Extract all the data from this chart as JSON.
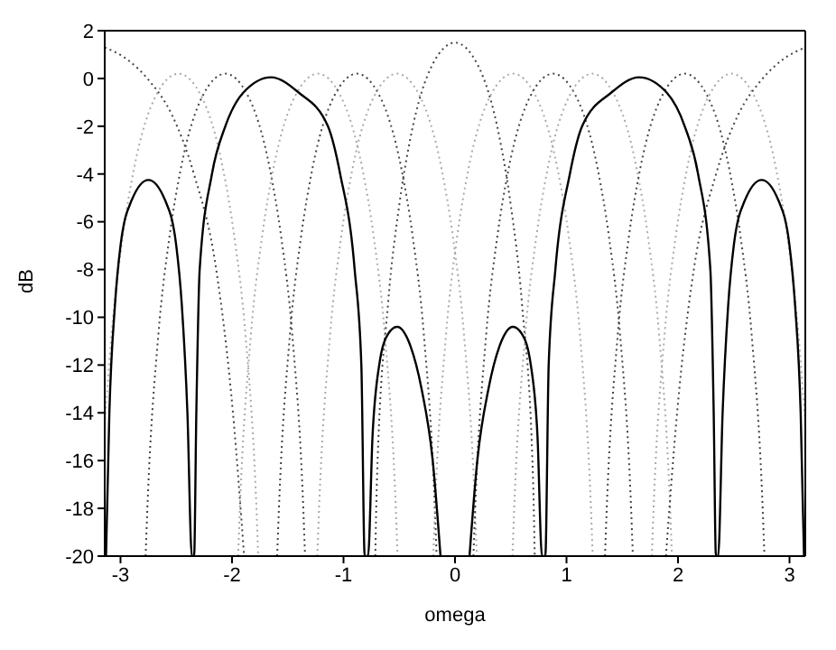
{
  "chart_data": {
    "type": "line",
    "xlabel": "omega",
    "ylabel": "dB",
    "xlim": [
      -3.1416,
      3.1416
    ],
    "xticks": [
      -3,
      -2,
      -1,
      0,
      1,
      2,
      3
    ],
    "ylim": [
      -20,
      2
    ],
    "yticks": [
      -20,
      -18,
      -16,
      -14,
      -12,
      -10,
      -8,
      -6,
      -4,
      -2,
      0,
      2
    ],
    "legend": false,
    "marker": "none",
    "series": [
      {
        "color": "#444444",
        "line_style": "dotted",
        "x": [
          -3.1416,
          -2.9416,
          -2.7416,
          -2.5416,
          -2.3416,
          -2.1416,
          -1.9916,
          -1.8916
        ],
        "values": [
          1.3,
          0.8,
          -0.1,
          -1.5,
          -4,
          -8,
          -14,
          -20
        ]
      },
      {
        "color": "#aaaaaa",
        "line_style": "dotted",
        "x": [
          -3.1416,
          -3.08,
          -2.98,
          -2.88,
          -2.68,
          -2.48,
          -2.28,
          -2.08,
          -1.98,
          -1.88,
          -1.78,
          -1.765
        ],
        "values": [
          -14.5,
          -10.7,
          -6.6,
          -3.8,
          -0.7,
          0.2,
          -0.7,
          -3.8,
          -6.6,
          -10.7,
          -18.1,
          -20
        ]
      },
      {
        "color": "#444444",
        "line_style": "dotted",
        "x": [
          -2.775,
          -2.76,
          -2.66,
          -2.56,
          -2.46,
          -2.26,
          -2.06,
          -1.86,
          -1.66,
          -1.56,
          -1.46,
          -1.36,
          -1.345
        ],
        "values": [
          -20,
          -18.1,
          -10.7,
          -6.6,
          -3.8,
          -0.7,
          0.2,
          -0.7,
          -3.8,
          -6.6,
          -10.7,
          -18.1,
          -20
        ]
      },
      {
        "color": "#aaaaaa",
        "line_style": "dotted",
        "x": [
          -1.945,
          -1.93,
          -1.83,
          -1.73,
          -1.63,
          -1.43,
          -1.23,
          -1.03,
          -0.83,
          -0.73,
          -0.63,
          -0.53,
          -0.515
        ],
        "values": [
          -20,
          -18.1,
          -10.7,
          -6.6,
          -3.8,
          -0.7,
          0.2,
          -0.7,
          -3.8,
          -6.6,
          -10.7,
          -18.1,
          -20
        ]
      },
      {
        "color": "#444444",
        "line_style": "dotted",
        "x": [
          -1.595,
          -1.58,
          -1.48,
          -1.38,
          -1.28,
          -1.08,
          -0.88,
          -0.68,
          -0.48,
          -0.38,
          -0.28,
          -0.18,
          -0.165
        ],
        "values": [
          -20,
          -18.1,
          -10.7,
          -6.6,
          -3.8,
          -0.7,
          0.2,
          -0.7,
          -3.8,
          -6.6,
          -10.7,
          -18.1,
          -20
        ]
      },
      {
        "color": "#aaaaaa",
        "line_style": "dotted",
        "x": [
          -1.235,
          -1.22,
          -1.12,
          -1.02,
          -0.92,
          -0.72,
          -0.52,
          -0.32,
          -0.12,
          -0.02,
          0.08,
          0.18,
          0.195
        ],
        "values": [
          -20,
          -18.1,
          -10.7,
          -6.6,
          -3.8,
          -0.7,
          0.2,
          -0.7,
          -3.8,
          -6.6,
          -10.7,
          -18.1,
          -20
        ]
      },
      {
        "color": "#444444",
        "line_style": "dotted",
        "x": [
          -0.715,
          -0.7,
          -0.6,
          -0.5,
          -0.4,
          -0.2,
          0,
          0.2,
          0.4,
          0.5,
          0.6,
          0.7,
          0.715
        ],
        "values": [
          -20,
          -16.8,
          -9.4,
          -5.3,
          -2.5,
          0.6,
          1.5,
          0.6,
          -2.5,
          -5.3,
          -9.4,
          -16.8,
          -20
        ]
      },
      {
        "color": "#aaaaaa",
        "line_style": "dotted",
        "x": [
          -0.195,
          -0.18,
          -0.08,
          0.02,
          0.12,
          0.32,
          0.52,
          0.72,
          0.92,
          1.02,
          1.12,
          1.22,
          1.235
        ],
        "values": [
          -20,
          -18.1,
          -10.7,
          -6.6,
          -3.8,
          -0.7,
          0.2,
          -0.7,
          -3.8,
          -6.6,
          -10.7,
          -18.1,
          -20
        ]
      },
      {
        "color": "#444444",
        "line_style": "dotted",
        "x": [
          0.165,
          0.18,
          0.28,
          0.38,
          0.48,
          0.68,
          0.88,
          1.08,
          1.28,
          1.38,
          1.48,
          1.58,
          1.595
        ],
        "values": [
          -20,
          -18.1,
          -10.7,
          -6.6,
          -3.8,
          -0.7,
          0.2,
          -0.7,
          -3.8,
          -6.6,
          -10.7,
          -18.1,
          -20
        ]
      },
      {
        "color": "#aaaaaa",
        "line_style": "dotted",
        "x": [
          0.515,
          0.53,
          0.63,
          0.73,
          0.83,
          1.03,
          1.23,
          1.43,
          1.63,
          1.73,
          1.83,
          1.93,
          1.945
        ],
        "values": [
          -20,
          -18.1,
          -10.7,
          -6.6,
          -3.8,
          -0.7,
          0.2,
          -0.7,
          -3.8,
          -6.6,
          -10.7,
          -18.1,
          -20
        ]
      },
      {
        "color": "#444444",
        "line_style": "dotted",
        "x": [
          1.345,
          1.36,
          1.46,
          1.56,
          1.66,
          1.86,
          2.06,
          2.26,
          2.46,
          2.56,
          2.66,
          2.76,
          2.775
        ],
        "values": [
          -20,
          -18.1,
          -10.7,
          -6.6,
          -3.8,
          -0.7,
          0.2,
          -0.7,
          -3.8,
          -6.6,
          -10.7,
          -18.1,
          -20
        ]
      },
      {
        "color": "#aaaaaa",
        "line_style": "dotted",
        "x": [
          1.765,
          1.78,
          1.88,
          1.98,
          2.08,
          2.28,
          2.48,
          2.68,
          2.88,
          2.98,
          3.08,
          3.1416
        ],
        "values": [
          -20,
          -18.1,
          -10.7,
          -6.6,
          -3.8,
          -0.7,
          0.2,
          -0.7,
          -3.8,
          -6.6,
          -10.7,
          -14.5
        ]
      },
      {
        "color": "#444444",
        "line_style": "dotted",
        "x": [
          1.8916,
          1.9916,
          2.1416,
          2.3416,
          2.5416,
          2.7416,
          2.9416,
          3.1416
        ],
        "values": [
          -20,
          -14,
          -8,
          -4,
          -1.5,
          -0.1,
          0.8,
          1.3
        ]
      },
      {
        "color": "#000000",
        "line_style": "solid",
        "x": [
          -3.13,
          -3.1,
          -3.05,
          -3.0,
          -2.9,
          -2.75,
          -2.6,
          -2.5,
          -2.45,
          -2.4,
          -2.36,
          -2.34,
          -2.32,
          -2.29,
          -2.18,
          -2.06,
          -1.9,
          -1.65,
          -1.4,
          -1.14,
          -1.03,
          -0.9,
          -0.84,
          -0.81,
          -0.78,
          -0.74,
          -0.68,
          -0.6,
          -0.52,
          -0.4,
          -0.3,
          -0.2,
          -0.13,
          0,
          0.13,
          0.2,
          0.3,
          0.4,
          0.52,
          0.6,
          0.68,
          0.74,
          0.78,
          0.81,
          0.84,
          0.9,
          1.03,
          1.14,
          1.4,
          1.65,
          1.9,
          2.06,
          2.18,
          2.29,
          2.32,
          2.34,
          2.36,
          2.4,
          2.45,
          2.5,
          2.6,
          2.75,
          2.9,
          3.0,
          3.05,
          3.1,
          3.13
        ],
        "values": [
          -20,
          -14,
          -9.5,
          -7,
          -5.1,
          -4.25,
          -5.1,
          -7,
          -9.5,
          -14,
          -20,
          -20,
          -14,
          -8,
          -4,
          -2,
          -0.6,
          0.05,
          -0.6,
          -2,
          -4,
          -8,
          -12,
          -20,
          -20,
          -15,
          -12,
          -10.7,
          -10.4,
          -11.2,
          -13,
          -16,
          -20,
          null,
          -20,
          -16,
          -13,
          -11.2,
          -10.4,
          -10.7,
          -12,
          -15,
          -20,
          -20,
          -12,
          -8,
          -4,
          -2,
          -0.6,
          0.05,
          -0.6,
          -2,
          -4,
          -8,
          -14,
          -20,
          -20,
          -14,
          -9.5,
          -7,
          -5.1,
          -4.25,
          -5.1,
          -7,
          -9.5,
          -14,
          -20
        ]
      }
    ]
  }
}
